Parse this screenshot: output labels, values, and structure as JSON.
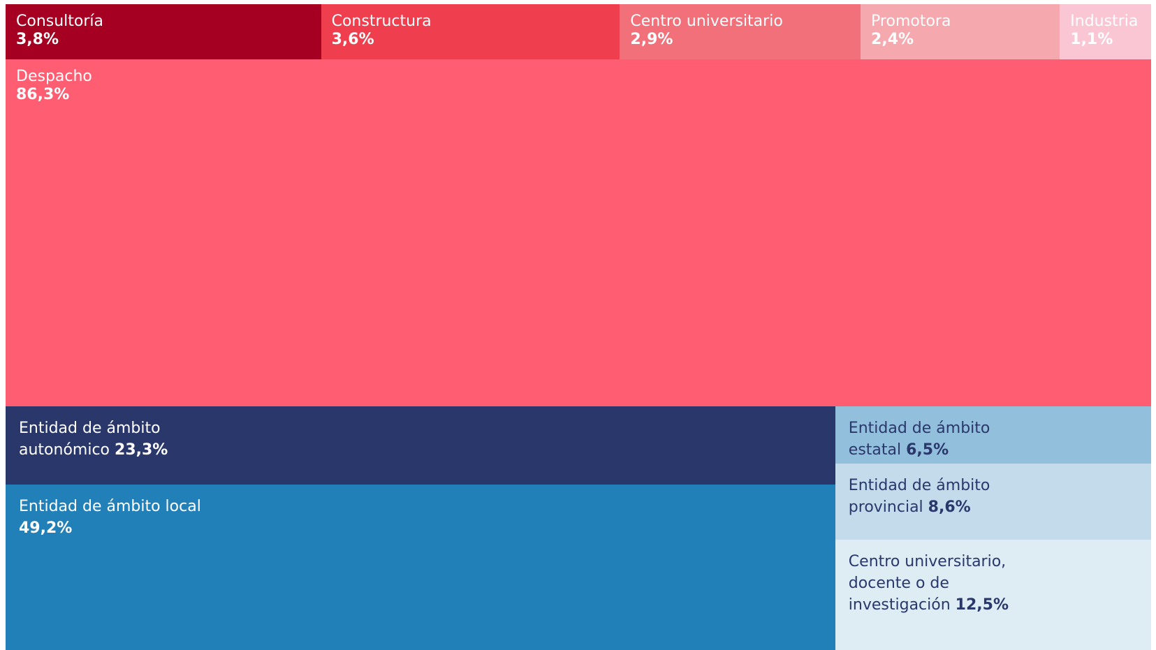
{
  "chart_data": [
    {
      "type": "treemap",
      "categories": [
        "Consultoría",
        "Constructura",
        "Centro universitario",
        "Promotora",
        "Industria",
        "Despacho"
      ],
      "values": [
        3.8,
        3.6,
        2.9,
        2.4,
        1.1,
        86.3
      ],
      "value_labels": [
        "3,8%",
        "3,6%",
        "2,9%",
        "2,4%",
        "1,1%",
        "86,3%"
      ],
      "colors": [
        "#a50021",
        "#ef3e4d",
        "#f2707a",
        "#f5a8ad",
        "#fbc6d3",
        "#ff5e72"
      ],
      "label_colors": [
        "#ffffff",
        "#ffffff",
        "#ffffff",
        "#ffffff",
        "#ffffff",
        "#ffffff"
      ]
    },
    {
      "type": "treemap",
      "categories": [
        "Entidad de ámbito autonómico",
        "Entidad de ámbito local",
        "Entidad de ámbito estatal",
        "Entidad de ámbito provincial",
        "Centro universitario, docente o de investigación"
      ],
      "values": [
        23.3,
        49.2,
        6.5,
        8.6,
        12.5
      ],
      "value_labels": [
        "23,3%",
        "49,2%",
        "6,5%",
        "8,6%",
        "12,5%"
      ],
      "colors": [
        "#2a376b",
        "#2280b8",
        "#92bfdb",
        "#c3dbeb",
        "#deecf4"
      ],
      "label_colors": [
        "#ffffff",
        "#ffffff",
        "#2a376b",
        "#2a376b",
        "#2a376b"
      ]
    }
  ]
}
